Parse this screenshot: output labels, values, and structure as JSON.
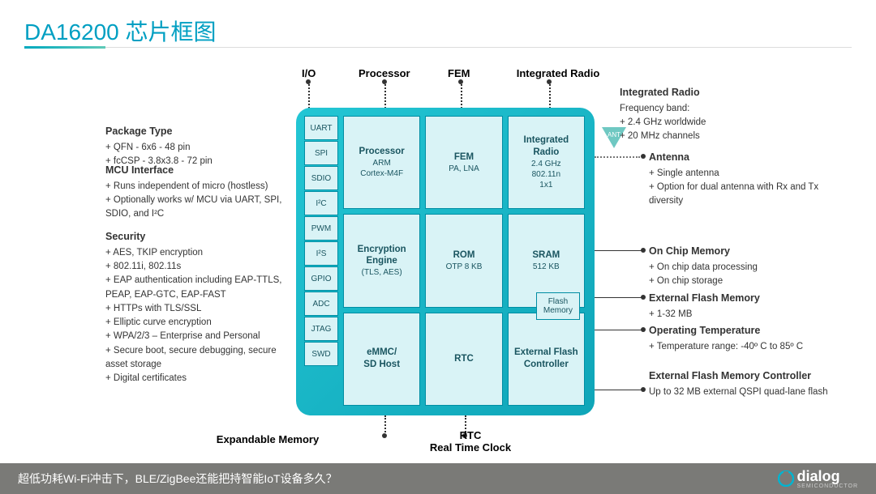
{
  "title": "DA16200 芯片框图",
  "top_labels": {
    "io": "I/O",
    "proc": "Processor",
    "fem": "FEM",
    "radio": "Integrated Radio"
  },
  "left": {
    "pkg": {
      "h": "Package Type",
      "items": [
        "QFN - 6x6 - 48 pin",
        "fcCSP - 3.8x3.8 - 72 pin"
      ]
    },
    "mcu": {
      "h": "MCU Interface",
      "items": [
        "Runs independent of micro (hostless)",
        "Optionally works w/ MCU via UART, SPI, SDIO, and I²C"
      ]
    },
    "sec": {
      "h": "Security",
      "items": [
        "AES, TKIP encryption",
        "802.11i, 802.11s",
        "EAP authentication including EAP-TTLS, PEAP, EAP-GTC, EAP-FAST",
        "HTTPs with TLS/SSL",
        "Elliptic curve encryption",
        "WPA/2/3 – Enterprise and Personal",
        "Secure boot, secure debugging, secure asset storage",
        "Digital certificates"
      ]
    }
  },
  "right": {
    "radio": {
      "h": "Integrated Radio",
      "sub": "Frequency band:",
      "items": [
        "2.4 GHz worldwide",
        "20 MHz channels"
      ]
    },
    "ant": {
      "h": "Antenna",
      "items": [
        "Single antenna",
        "Option for dual antenna with Rx and Tx diversity"
      ]
    },
    "onchip": {
      "h": "On Chip Memory",
      "items": [
        "On chip data processing",
        "On chip storage"
      ]
    },
    "extflash": {
      "h": "External Flash Memory",
      "items": [
        "1-32 MB"
      ]
    },
    "temp": {
      "h": "Operating Temperature",
      "items": [
        "Temperature range: -40º C to 85º C"
      ]
    },
    "ctrl": {
      "h": "External Flash Memory Controller",
      "sub": "Up to 32 MB external QSPI quad-lane flash"
    }
  },
  "io_cells": [
    "UART",
    "SPI",
    "SDIO",
    "I²C",
    "PWM",
    "I²S",
    "GPIO",
    "ADC",
    "JTAG",
    "SWD"
  ],
  "grid": [
    {
      "t": "Processor",
      "s": "ARM\nCortex-M4F"
    },
    {
      "t": "FEM",
      "s": "PA, LNA"
    },
    {
      "t": "Integrated Radio",
      "s": "2.4 GHz\n802.11n\n1x1"
    },
    {
      "t": "Encryption Engine",
      "s": "(TLS, AES)"
    },
    {
      "t": "ROM",
      "s": "OTP 8 KB"
    },
    {
      "t": "SRAM",
      "s": "512 KB"
    },
    {
      "t": "eMMC/\nSD Host",
      "s": ""
    },
    {
      "t": "RTC",
      "s": ""
    },
    {
      "t": "External Flash Controller",
      "s": ""
    }
  ],
  "flash_memory": "Flash\nMemory",
  "bottom": {
    "exp": "Expandable Memory",
    "rtc": "RTC\nReal Time Clock"
  },
  "footer": "超低功耗Wi-Fi冲击下，BLE/ZigBee还能把持智能IoT设备多久？",
  "brand": "dialog",
  "brand_sub": "SEMICONDUCTOR",
  "colors": {
    "accent": "#009fc2",
    "chip_bg": "#23c6d4",
    "cell": "#d9f3f6",
    "cell_border": "#008da3",
    "ant": "#6fc8c2"
  }
}
